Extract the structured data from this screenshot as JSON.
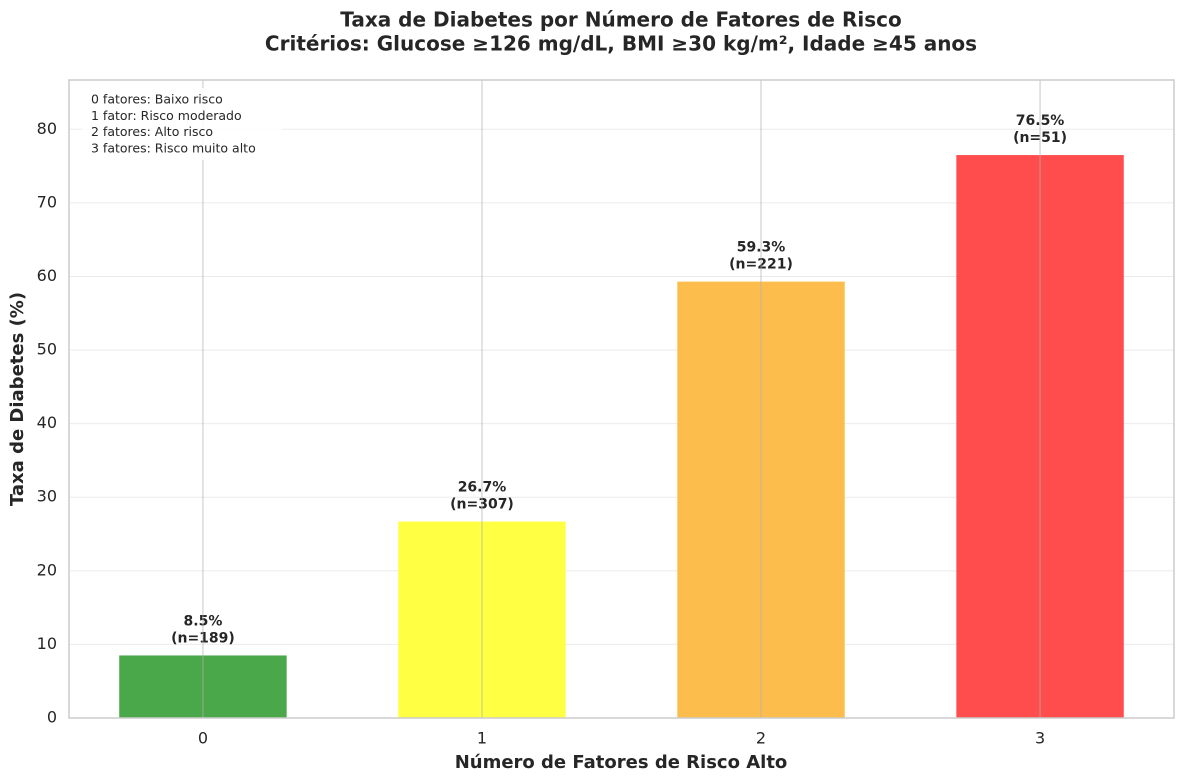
{
  "chart_data": {
    "type": "bar",
    "title": [
      "Taxa de Diabetes por Número de Fatores de Risco",
      "Critérios: Glucose ≥126 mg/dL, BMI ≥30 kg/m², Idade ≥45 anos"
    ],
    "x_label": "Número de Fatores de Risco Alto",
    "y_label": "Taxa de Diabetes (%)",
    "x": [
      0,
      1,
      2,
      3
    ],
    "values": [
      8.5,
      26.7,
      59.3,
      76.5
    ],
    "value_labels": [
      "8.5%",
      "26.7%",
      "59.3%",
      "76.5%"
    ],
    "sample_labels": [
      "(n=189)",
      "(n=307)",
      "(n=221)",
      "(n=51)"
    ],
    "colors": [
      "#4aa84a",
      "#ffff44",
      "#fdbd4c",
      "#ff4c4c"
    ],
    "xlim": [
      -0.48,
      3.48
    ],
    "xticks": [
      0,
      1,
      2,
      3
    ],
    "ylim": [
      0,
      86.7
    ],
    "yticks": [
      0,
      10,
      20,
      30,
      40,
      50,
      60,
      70,
      80
    ],
    "grid": true,
    "annotation": [
      "0 fatores: Baixo risco",
      "1 fator: Risco moderado",
      "2 fatores: Alto risco",
      "3 fatores: Risco muito alto"
    ]
  }
}
